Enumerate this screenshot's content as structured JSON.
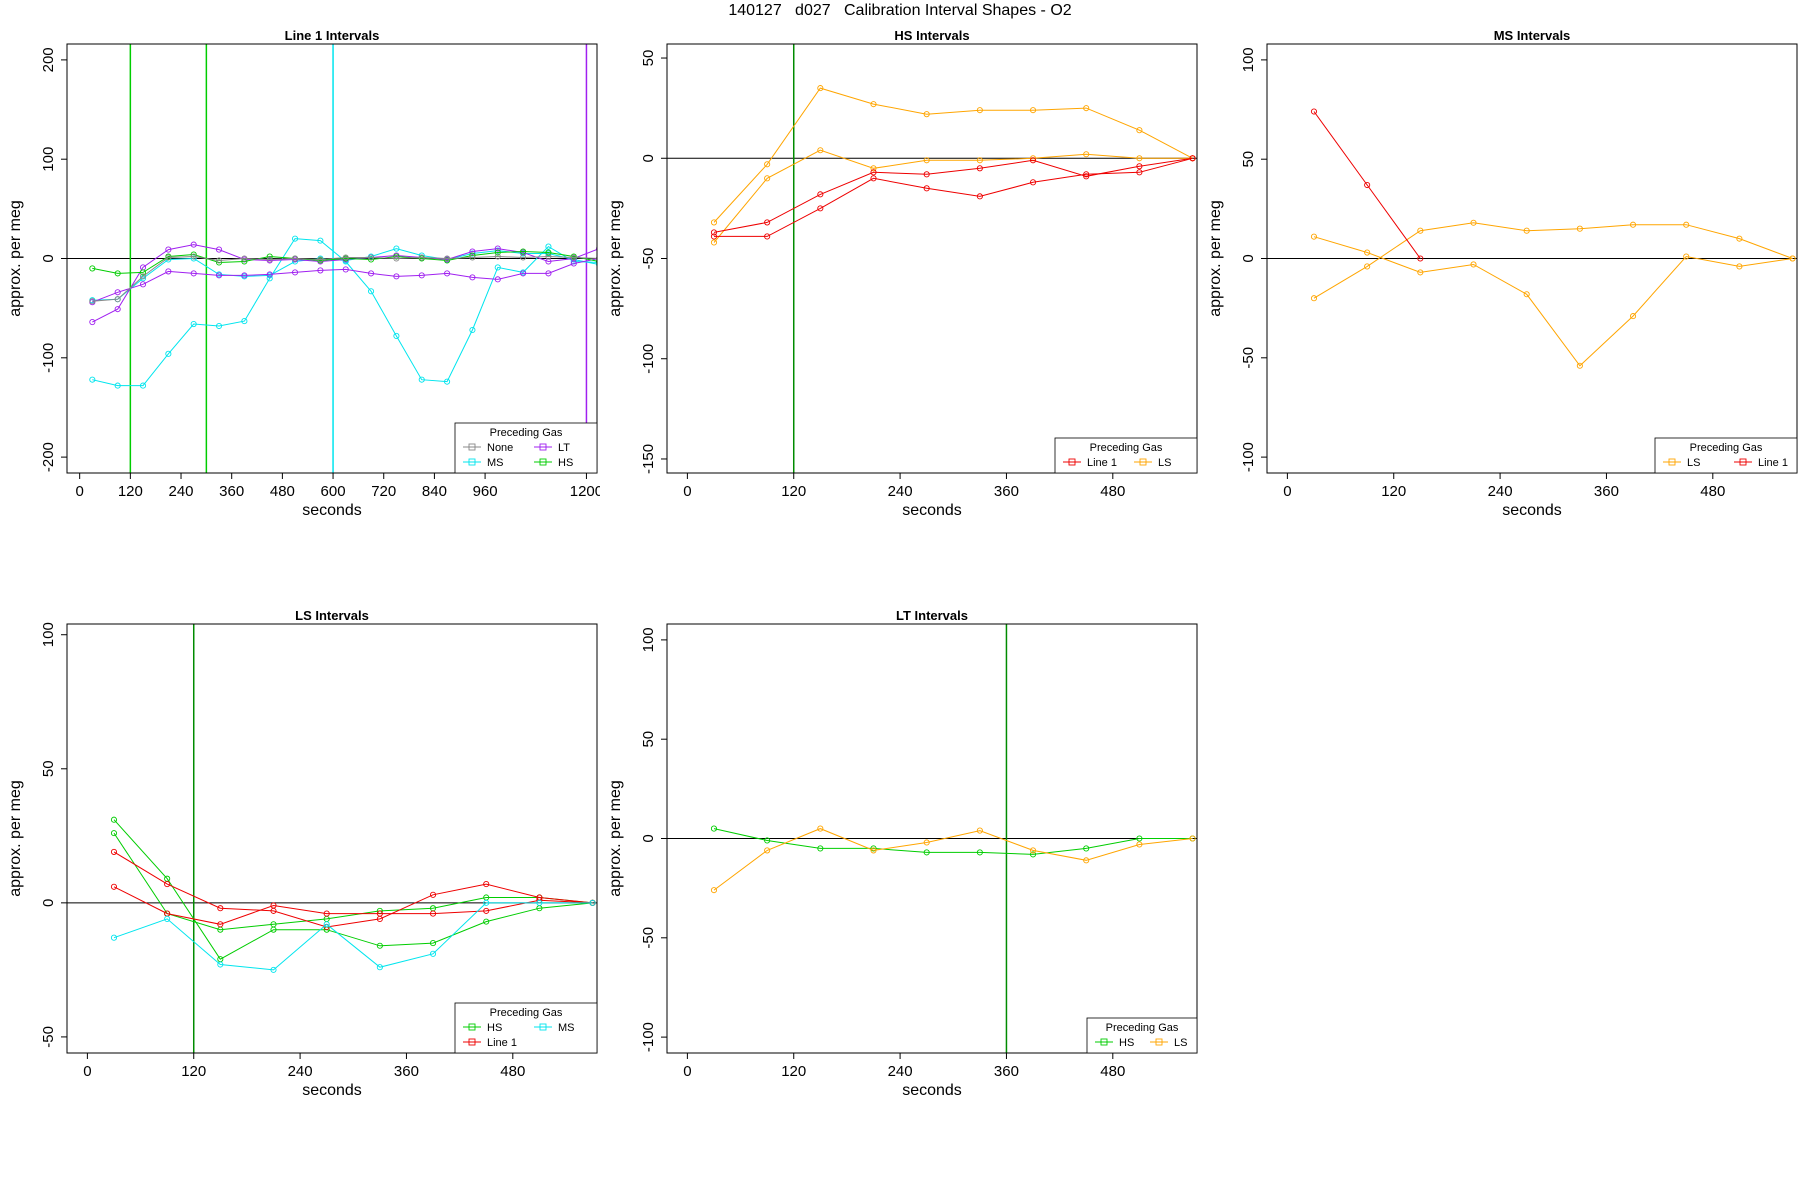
{
  "figure_title": "140127   d027   Calibration Interval Shapes - O2",
  "colors": {
    "None": "#888888",
    "MS": "#00e5ee",
    "LT": "#a020f0",
    "HS": "#00cd00",
    "Line 1": "#ee0000",
    "LS": "#ffa500",
    "green_line": "#008b00"
  },
  "chart_data": [
    {
      "type": "line",
      "title": "Line 1 Intervals",
      "xlabel": "seconds",
      "ylabel": "approx. per meg",
      "xlim": [
        -30,
        1225
      ],
      "ylim": [
        -216,
        216
      ],
      "xticks": [
        0,
        120,
        240,
        360,
        480,
        600,
        720,
        840,
        960,
        1200
      ],
      "yticks": [
        -200,
        -100,
        0,
        100,
        200
      ],
      "zero_line": true,
      "vlines": [
        {
          "x": 120,
          "color": "#00cd00"
        },
        {
          "x": 300,
          "color": "#00cd00"
        },
        {
          "x": 600,
          "color": "#00e5ee"
        },
        {
          "x": 1200,
          "color": "#a020f0"
        }
      ],
      "legend": {
        "title": "Preceding Gas",
        "position": "bottom-right",
        "entries": [
          {
            "name": "None",
            "color": "#888888"
          },
          {
            "name": "LT",
            "color": "#a020f0"
          },
          {
            "name": "MS",
            "color": "#00e5ee"
          },
          {
            "name": "HS",
            "color": "#00cd00"
          }
        ]
      },
      "series": [
        {
          "name": "MS",
          "color": "#00e5ee",
          "x": [
            30,
            90,
            150,
            210,
            270,
            330,
            390,
            450,
            510,
            570,
            630,
            690,
            750,
            810,
            870,
            930,
            990,
            1050,
            1110,
            1170,
            1230
          ],
          "y": [
            -122,
            -128,
            -128,
            -96,
            -66,
            -68,
            -63,
            -20,
            20,
            18,
            -3,
            -33,
            -78,
            -122,
            -124,
            -72,
            -9,
            -14,
            12,
            -3,
            -4
          ]
        },
        {
          "name": "MS",
          "color": "#00e5ee",
          "x": [
            30,
            90,
            150,
            210,
            270,
            330,
            390,
            450,
            510,
            570,
            630,
            690,
            750,
            810,
            870,
            930,
            990,
            1050,
            1110,
            1170,
            1230
          ],
          "y": [
            -42,
            -41,
            -20,
            -1,
            0,
            -16,
            -18,
            -17,
            -3,
            0,
            -2,
            2,
            10,
            3,
            -1,
            5,
            8,
            5,
            5,
            -1,
            -6
          ]
        },
        {
          "name": "LT",
          "color": "#a020f0",
          "x": [
            30,
            90,
            150,
            210,
            270,
            330,
            390,
            450,
            510,
            570,
            630,
            690,
            750,
            810,
            870,
            930,
            990,
            1050,
            1110,
            1170,
            1230
          ],
          "y": [
            -64,
            -51,
            -9,
            9,
            14,
            9,
            -1,
            -2,
            -1,
            -3,
            -1,
            1,
            3,
            1,
            -1,
            7,
            10,
            6,
            -3,
            0,
            10
          ]
        },
        {
          "name": "LT",
          "color": "#a020f0",
          "x": [
            30,
            90,
            150,
            210,
            270,
            330,
            390,
            450,
            510,
            570,
            630,
            690,
            750,
            810,
            870,
            930,
            990,
            1050,
            1110,
            1170,
            1230
          ],
          "y": [
            -44,
            -34,
            -26,
            -13,
            -15,
            -17,
            -17,
            -16,
            -14,
            -12,
            -11,
            -15,
            -18,
            -17,
            -15,
            -19,
            -21,
            -15,
            -15,
            -5,
            0
          ]
        },
        {
          "name": "HS",
          "color": "#00cd00",
          "x": [
            30,
            90,
            150,
            210,
            270,
            330,
            390,
            450,
            510,
            570,
            630,
            690,
            750,
            810,
            870,
            930,
            990,
            1050,
            1110,
            1170,
            1230
          ],
          "y": [
            -10,
            -15,
            -14,
            2,
            4,
            -4,
            -3,
            2,
            0,
            -2,
            0,
            -1,
            2,
            0,
            -2,
            3,
            6,
            7,
            6,
            2,
            -3
          ]
        },
        {
          "name": "None",
          "color": "#888888",
          "x": [
            30,
            90,
            150,
            210,
            270,
            330,
            390,
            450,
            510,
            570,
            630,
            690,
            750,
            810,
            870,
            930,
            990,
            1050,
            1110,
            1170,
            1230
          ],
          "y": [
            -43,
            -41,
            -18,
            1,
            2,
            -2,
            0,
            -1,
            0,
            -1,
            1,
            1,
            0,
            1,
            0,
            1,
            2,
            1,
            2,
            1,
            0
          ]
        }
      ]
    },
    {
      "type": "line",
      "title": "HS Intervals",
      "xlabel": "seconds",
      "ylabel": "approx. per meg",
      "xlim": [
        -23,
        575
      ],
      "ylim": [
        -157,
        57
      ],
      "xticks": [
        0,
        120,
        240,
        360,
        480
      ],
      "yticks": [
        -150,
        -100,
        -50,
        0,
        50
      ],
      "zero_line": true,
      "vlines": [
        {
          "x": 120,
          "color": "#008b00"
        }
      ],
      "legend": {
        "title": "Preceding Gas",
        "position": "bottom-right",
        "entries": [
          {
            "name": "Line 1",
            "color": "#ee0000"
          },
          {
            "name": "LS",
            "color": "#ffa500"
          }
        ]
      },
      "series": [
        {
          "name": "LS",
          "color": "#ffa500",
          "x": [
            30,
            90,
            150,
            210,
            270,
            330,
            390,
            450,
            510,
            570
          ],
          "y": [
            -32,
            -3,
            35,
            27,
            22,
            24,
            24,
            25,
            14,
            0
          ]
        },
        {
          "name": "LS",
          "color": "#ffa500",
          "x": [
            30,
            90,
            150,
            210,
            270,
            330,
            390,
            450,
            510,
            570
          ],
          "y": [
            -42,
            -10,
            4,
            -5,
            -1,
            -1,
            0,
            2,
            0,
            0
          ]
        },
        {
          "name": "Line 1",
          "color": "#ee0000",
          "x": [
            30,
            90,
            150,
            210,
            270,
            330,
            390,
            450,
            510,
            570
          ],
          "y": [
            -37,
            -32,
            -18,
            -7,
            -8,
            -5,
            -1,
            -9,
            -4,
            0
          ]
        },
        {
          "name": "Line 1",
          "color": "#ee0000",
          "x": [
            30,
            90,
            150,
            210,
            270,
            330,
            390,
            450,
            510,
            570
          ],
          "y": [
            -39,
            -39,
            -25,
            -10,
            -15,
            -19,
            -12,
            -8,
            -7,
            0
          ]
        }
      ]
    },
    {
      "type": "line",
      "title": "MS Intervals",
      "xlabel": "seconds",
      "ylabel": "approx. per meg",
      "xlim": [
        -23,
        575
      ],
      "ylim": [
        -108,
        108
      ],
      "xticks": [
        0,
        120,
        240,
        360,
        480
      ],
      "yticks": [
        -100,
        -50,
        0,
        50,
        100
      ],
      "zero_line": true,
      "vlines": [],
      "legend": {
        "title": "Preceding Gas",
        "position": "bottom-right",
        "entries": [
          {
            "name": "LS",
            "color": "#ffa500"
          },
          {
            "name": "Line 1",
            "color": "#ee0000"
          }
        ]
      },
      "series": [
        {
          "name": "LS",
          "color": "#ffa500",
          "x": [
            30,
            90,
            150,
            210,
            270,
            330,
            390,
            450,
            510,
            570
          ],
          "y": [
            11,
            3,
            -7,
            -3,
            -18,
            -54,
            -29,
            1,
            -4,
            0
          ]
        },
        {
          "name": "LS",
          "color": "#ffa500",
          "x": [
            30,
            90,
            150,
            210,
            270,
            330,
            390,
            450,
            510,
            570
          ],
          "y": [
            -20,
            -4,
            14,
            18,
            14,
            15,
            17,
            17,
            10,
            0
          ]
        },
        {
          "name": "Line 1",
          "color": "#ee0000",
          "x": [
            30,
            90,
            150
          ],
          "y": [
            74,
            37,
            0
          ]
        }
      ]
    },
    {
      "type": "line",
      "title": "LS Intervals",
      "xlabel": "seconds",
      "ylabel": "approx. per meg",
      "xlim": [
        -23,
        575
      ],
      "ylim": [
        -56,
        104
      ],
      "xticks": [
        0,
        120,
        240,
        360,
        480
      ],
      "yticks": [
        -50,
        0,
        50,
        100
      ],
      "zero_line": true,
      "vlines": [
        {
          "x": 120,
          "color": "#008b00"
        }
      ],
      "legend": {
        "title": "Preceding Gas",
        "position": "bottom-right",
        "entries": [
          {
            "name": "HS",
            "color": "#00cd00"
          },
          {
            "name": "MS",
            "color": "#00e5ee"
          },
          {
            "name": "Line 1",
            "color": "#ee0000"
          }
        ]
      },
      "series": [
        {
          "name": "HS",
          "color": "#00cd00",
          "x": [
            30,
            90,
            150,
            210,
            270,
            330,
            390,
            450,
            510,
            570
          ],
          "y": [
            31,
            9,
            -21,
            -10,
            -10,
            -16,
            -15,
            -7,
            -2,
            0
          ]
        },
        {
          "name": "HS",
          "color": "#00cd00",
          "x": [
            30,
            90,
            150,
            210,
            270,
            330,
            390,
            450,
            510,
            570
          ],
          "y": [
            26,
            -4,
            -10,
            -8,
            -6,
            -3,
            -2,
            2,
            2,
            0
          ]
        },
        {
          "name": "Line 1",
          "color": "#ee0000",
          "x": [
            30,
            90,
            150,
            210,
            270,
            330,
            390,
            450,
            510,
            570
          ],
          "y": [
            19,
            7,
            -2,
            -3,
            -9,
            -6,
            3,
            7,
            2,
            0
          ]
        },
        {
          "name": "Line 1",
          "color": "#ee0000",
          "x": [
            30,
            90,
            150,
            210,
            270,
            330,
            390,
            450,
            510,
            570
          ],
          "y": [
            6,
            -4,
            -8,
            -1,
            -4,
            -4,
            -4,
            -3,
            1,
            0
          ]
        },
        {
          "name": "MS",
          "color": "#00e5ee",
          "x": [
            30,
            90,
            150,
            210,
            270,
            330,
            390,
            450,
            510,
            570
          ],
          "y": [
            -13,
            -6,
            -23,
            -25,
            -8,
            -24,
            -19,
            0,
            0,
            0
          ]
        }
      ]
    },
    {
      "type": "line",
      "title": "LT Intervals",
      "xlabel": "seconds",
      "ylabel": "approx. per meg",
      "xlim": [
        -23,
        575
      ],
      "ylim": [
        -108,
        108
      ],
      "xticks": [
        0,
        120,
        240,
        360,
        480
      ],
      "yticks": [
        -100,
        -50,
        0,
        50,
        100
      ],
      "zero_line": true,
      "vlines": [
        {
          "x": 360,
          "color": "#008b00"
        }
      ],
      "legend": {
        "title": "Preceding Gas",
        "position": "bottom-right",
        "entries": [
          {
            "name": "HS",
            "color": "#00cd00"
          },
          {
            "name": "LS",
            "color": "#ffa500"
          }
        ]
      },
      "series": [
        {
          "name": "HS",
          "color": "#00cd00",
          "x": [
            30,
            90,
            150,
            210,
            270,
            330,
            390,
            450,
            510,
            570
          ],
          "y": [
            5,
            -1,
            -5,
            -5,
            -7,
            -7,
            -8,
            -5,
            0,
            0
          ]
        },
        {
          "name": "LS",
          "color": "#ffa500",
          "x": [
            30,
            90,
            150,
            210,
            270,
            330,
            390,
            450,
            510,
            570
          ],
          "y": [
            -26,
            -6,
            5,
            -6,
            -2,
            4,
            -6,
            -11,
            -3,
            0
          ]
        }
      ]
    }
  ]
}
